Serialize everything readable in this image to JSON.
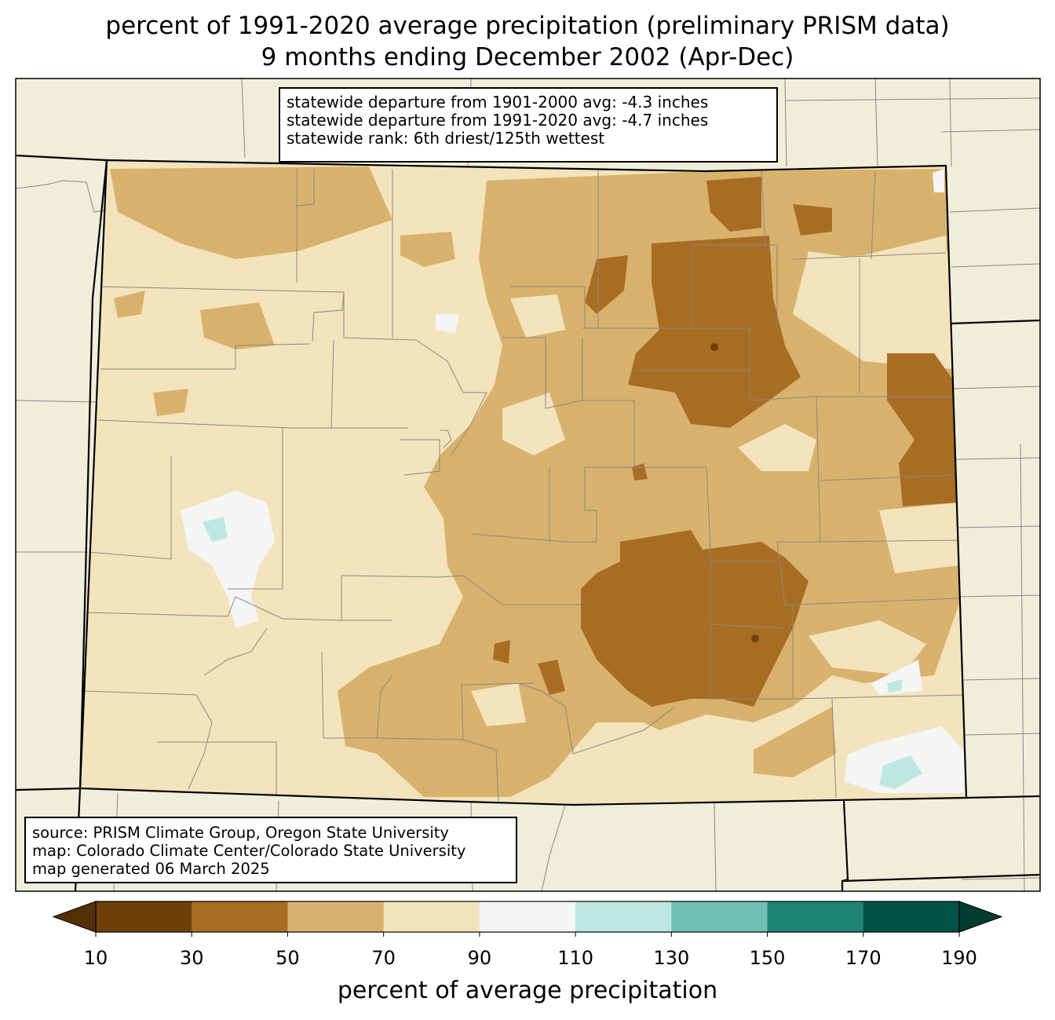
{
  "title": {
    "line1": "percent of 1991-2020 average precipitation (preliminary PRISM data)",
    "line2": "9 months ending December 2002 (Apr-Dec)"
  },
  "stats": {
    "dep_1901_2000": "statewide departure from 1901-2000 avg: -4.3 inches",
    "dep_1991_2020": "statewide departure from 1991-2020 avg: -4.7 inches",
    "rank": "statewide rank: 6th driest/125th wettest"
  },
  "source": {
    "line1": "source: PRISM Climate Group, Oregon State University",
    "line2": "map: Colorado Climate Center/Colorado State University",
    "line3": "map generated 06 March 2025"
  },
  "colorbar": {
    "label": "percent of average precipitation",
    "ticks": [
      "10",
      "30",
      "50",
      "70",
      "90",
      "110",
      "130",
      "150",
      "170",
      "190"
    ],
    "colors": [
      "#6f3f0c",
      "#a86d22",
      "#d8b26c",
      "#f3e3bc",
      "#f4f5f4",
      "#bfe7e2",
      "#70c0b3",
      "#208378",
      "#005346"
    ],
    "under_color": "#543005",
    "over_color": "#003c30"
  },
  "background_color": "#efeedb"
}
